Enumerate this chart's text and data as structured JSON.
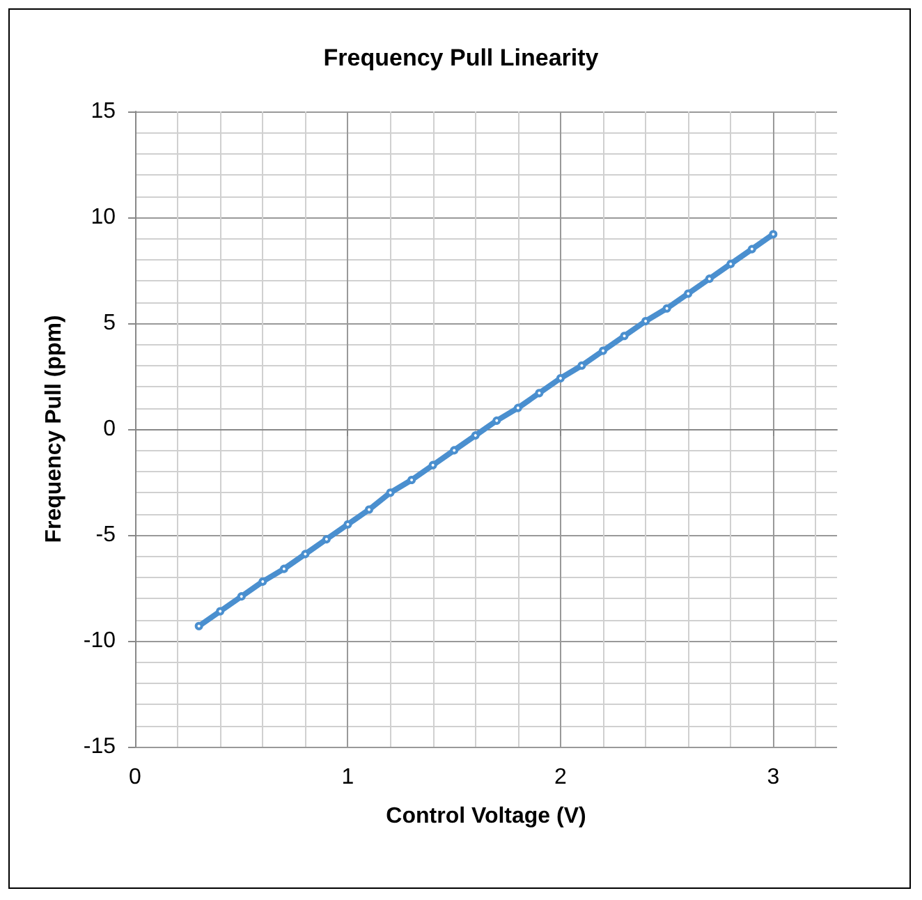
{
  "chart_data": {
    "type": "line",
    "title": "Frequency Pull Linearity",
    "xlabel": "Control Voltage (V)",
    "ylabel": "Frequency Pull (ppm)",
    "x": [
      0.3,
      0.4,
      0.5,
      0.6,
      0.7,
      0.8,
      0.9,
      1.0,
      1.1,
      1.2,
      1.3,
      1.4,
      1.5,
      1.6,
      1.7,
      1.8,
      1.9,
      2.0,
      2.1,
      2.2,
      2.3,
      2.4,
      2.5,
      2.6,
      2.7,
      2.8,
      2.9,
      3.0
    ],
    "series": [
      {
        "color": "#4a8fcf",
        "values": [
          -9.3,
          -8.6,
          -7.9,
          -7.2,
          -6.6,
          -5.9,
          -5.2,
          -4.5,
          -3.8,
          -3.0,
          -2.4,
          -1.7,
          -1.0,
          -0.3,
          0.4,
          1.0,
          1.7,
          2.4,
          3.0,
          3.7,
          4.4,
          5.1,
          5.7,
          6.4,
          7.1,
          7.8,
          8.5,
          9.2
        ]
      }
    ],
    "xlim": [
      0,
      3.3
    ],
    "xticks": [
      0,
      1,
      2,
      3
    ],
    "ylim": [
      -15,
      15
    ],
    "yticks": [
      -15,
      -10,
      -5,
      0,
      5,
      10,
      15
    ],
    "grid": true,
    "marker": "circle",
    "line_style": "solid"
  }
}
